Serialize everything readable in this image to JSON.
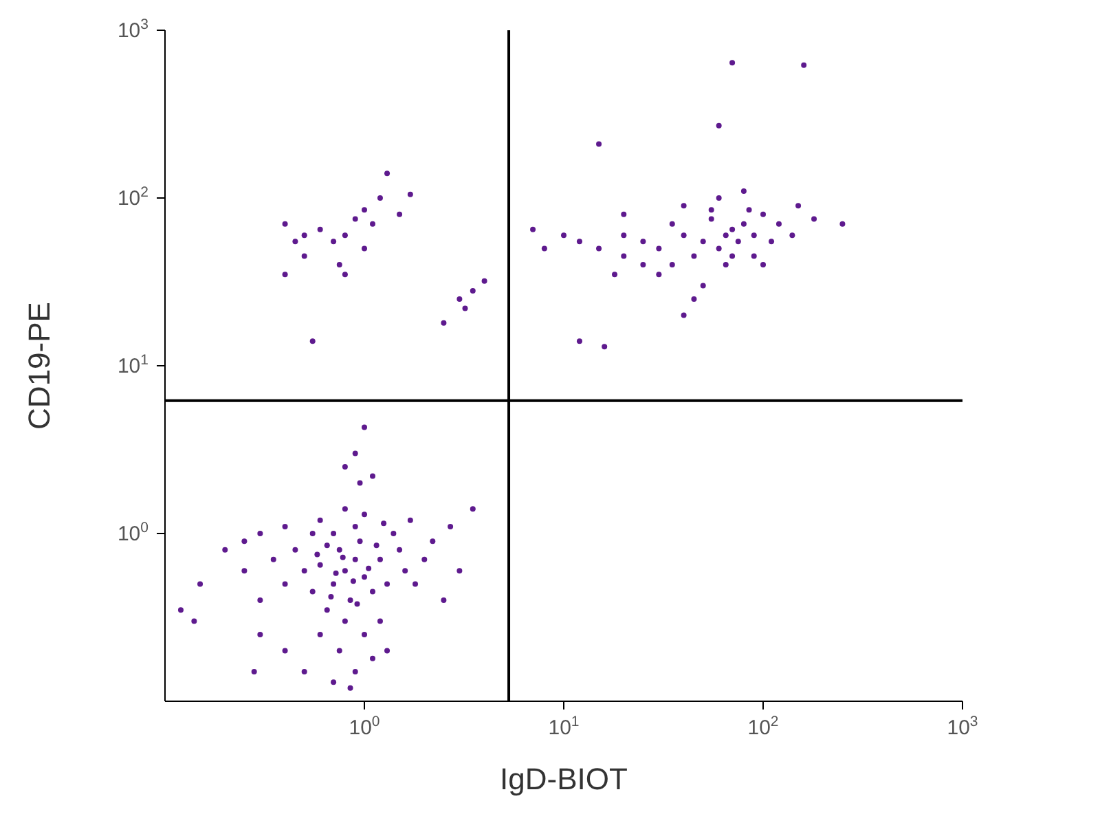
{
  "chart_data": {
    "type": "scatter",
    "xlabel": "IgD-BIOT",
    "ylabel": "CD19-PE",
    "log": "xy",
    "xlim": [
      0.1,
      1000
    ],
    "ylim": [
      0.1,
      1000
    ],
    "xticks": [
      {
        "value": 1,
        "label": "10$^{0}$"
      },
      {
        "value": 10,
        "label": "10$^{1}$"
      },
      {
        "value": 100,
        "label": "10$^{2}$"
      },
      {
        "value": 1000,
        "label": "10$^{3}$"
      }
    ],
    "yticks": [
      {
        "value": 1,
        "label": "10$^{0}$"
      },
      {
        "value": 10,
        "label": "10$^{1}$"
      },
      {
        "value": 100,
        "label": "10$^{2}$"
      },
      {
        "value": 1000,
        "label": "10$^{3}$"
      }
    ],
    "marker": "circle",
    "ref_lines": [
      {
        "axis": "x",
        "value": 5.3,
        "color": "#000000"
      },
      {
        "axis": "y",
        "value": 6.2,
        "color": "#000000"
      }
    ],
    "series": [
      {
        "color": "#5e1a8e",
        "x": [
          0.8,
          0.7,
          0.9,
          1.0,
          0.6,
          0.75,
          0.85,
          1.1,
          0.65,
          0.95,
          1.2,
          0.5,
          0.55,
          0.7,
          0.9,
          1.3,
          0.45,
          0.8,
          1.0,
          0.6,
          0.75,
          0.9,
          0.85,
          1.1,
          0.7,
          1.0,
          0.8,
          0.6,
          1.4,
          1.5,
          1.6,
          1.8,
          2.0,
          2.2,
          1.7,
          0.4,
          0.35,
          0.3,
          0.25,
          0.2,
          0.15,
          0.12,
          0.14,
          0.3,
          0.4,
          0.5,
          0.28,
          0.55,
          0.4,
          0.3,
          0.25,
          0.95,
          0.9,
          1.0,
          0.8,
          1.1,
          3.5,
          2.5,
          3.0,
          2.7,
          1.2,
          1.3,
          0.65,
          0.72,
          0.88,
          1.05,
          0.78,
          0.68,
          0.92,
          1.15,
          0.58,
          1.25,
          50,
          40,
          60,
          70,
          30,
          80,
          45,
          55,
          35,
          65,
          90,
          100,
          25,
          20,
          15,
          12,
          10,
          8,
          7,
          120,
          150,
          180,
          250,
          60,
          80,
          40,
          20,
          30,
          50,
          45,
          70,
          90,
          110,
          140,
          35,
          25,
          18,
          12,
          16,
          40,
          15,
          60,
          70,
          160,
          55,
          75,
          85,
          100,
          20,
          65,
          0.4,
          0.5,
          0.6,
          0.7,
          0.8,
          0.9,
          1.0,
          1.1,
          1.3,
          1.5,
          1.7,
          1.0,
          0.75,
          0.5,
          0.4,
          0.8,
          0.55,
          2.5,
          3.2,
          3.5,
          4.0,
          3.0,
          1.2,
          0.45
        ],
        "values": [
          0.6,
          0.5,
          0.7,
          0.55,
          0.65,
          0.8,
          0.4,
          0.45,
          0.35,
          0.9,
          0.7,
          0.6,
          0.45,
          1.0,
          1.1,
          0.5,
          0.8,
          0.3,
          0.25,
          0.25,
          0.2,
          0.15,
          0.12,
          0.18,
          0.13,
          1.3,
          1.4,
          1.2,
          1.0,
          0.8,
          0.6,
          0.5,
          0.7,
          0.9,
          1.2,
          0.5,
          0.7,
          0.4,
          0.6,
          0.8,
          0.5,
          0.35,
          0.3,
          0.25,
          0.2,
          0.15,
          0.15,
          1.0,
          1.1,
          1.0,
          0.9,
          2.0,
          3.0,
          4.3,
          2.5,
          2.2,
          1.4,
          0.4,
          0.6,
          1.1,
          0.3,
          0.2,
          0.85,
          0.58,
          0.52,
          0.62,
          0.72,
          0.42,
          0.38,
          0.85,
          0.75,
          1.15,
          55,
          60,
          50,
          65,
          50,
          70,
          45,
          75,
          40,
          40,
          60,
          80,
          55,
          60,
          50,
          55,
          60,
          50,
          65,
          70,
          90,
          75,
          70,
          100,
          110,
          90,
          45,
          35,
          30,
          25,
          45,
          45,
          55,
          60,
          70,
          40,
          35,
          14,
          13,
          20,
          210,
          270,
          640,
          620,
          85,
          55,
          85,
          40,
          80,
          60,
          70,
          60,
          65,
          55,
          60,
          75,
          85,
          70,
          140,
          80,
          105,
          50,
          40,
          45,
          35,
          35,
          14,
          18,
          22,
          28,
          32,
          25,
          100,
          55
        ]
      }
    ]
  }
}
